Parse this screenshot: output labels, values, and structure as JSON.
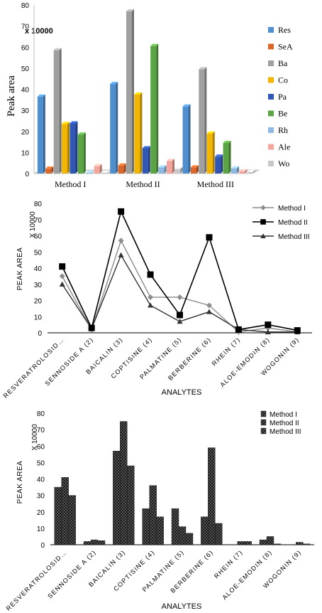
{
  "chart_data": [
    {
      "type": "bar",
      "ylabel": "Peak area",
      "scale_label": "x 10000",
      "ylim": [
        0,
        80
      ],
      "yticks": [
        0,
        10,
        20,
        30,
        40,
        50,
        60,
        70,
        80
      ],
      "categories": [
        "Method I",
        "Method II",
        "Method III"
      ],
      "legend_position": "right",
      "series": [
        {
          "name": "Res",
          "color": "#4f8fcf",
          "values": [
            36.5,
            42.5,
            31.8
          ]
        },
        {
          "name": "SeA",
          "color": "#d9662a",
          "values": [
            2.3,
            3.8,
            2.9
          ]
        },
        {
          "name": "Ba",
          "color": "#a0a0a0",
          "values": [
            58.5,
            77.0,
            49.5
          ]
        },
        {
          "name": "Co",
          "color": "#f2b600",
          "values": [
            23.5,
            37.5,
            19.0
          ]
        },
        {
          "name": "Pa",
          "color": "#2f57b3",
          "values": [
            23.8,
            12.0,
            8.0
          ]
        },
        {
          "name": "Be",
          "color": "#5aa445",
          "values": [
            18.5,
            60.5,
            14.5
          ]
        },
        {
          "name": "Rh",
          "color": "#8fb8e2",
          "values": [
            0.3,
            3.0,
            2.5
          ]
        },
        {
          "name": "Ale",
          "color": "#f4a69c",
          "values": [
            3.5,
            6.0,
            1.0
          ]
        },
        {
          "name": "Wo",
          "color": "#c8c8c8",
          "values": [
            0.4,
            2.2,
            0.7
          ]
        }
      ]
    },
    {
      "type": "line",
      "ylabel": "PEAK AREA",
      "xlabel": "ANALYTES",
      "scale_label": "X 10000",
      "ylim": [
        0,
        80
      ],
      "yticks": [
        0,
        10,
        20,
        30,
        40,
        50,
        60,
        70,
        80
      ],
      "legend_position": "top-right",
      "categories": [
        "RESVERATROLOSID…",
        "SENNOSIDE A (2)",
        "BAICALIN (3)",
        "COPTISINE (4)",
        "PALMATINE (5)",
        "BERBERINE (6)",
        "RHEIN (7)",
        "ALOE-EMODIN (8)",
        "WOGONIN (9)"
      ],
      "series": [
        {
          "name": "Method I",
          "color": "#8c8c8c",
          "marker": "diamond",
          "values": [
            35,
            2,
            57,
            22,
            22,
            17,
            0.5,
            3,
            0.5
          ]
        },
        {
          "name": "Method II",
          "color": "#000000",
          "marker": "square",
          "values": [
            41,
            3,
            75,
            36,
            11,
            59,
            2,
            5,
            1.5
          ]
        },
        {
          "name": "Method III",
          "color": "#333333",
          "marker": "triangle",
          "values": [
            30,
            2.5,
            48,
            17,
            7,
            13,
            2,
            0.5,
            0.5
          ]
        }
      ]
    },
    {
      "type": "bar",
      "ylabel": "PEAK AREA",
      "xlabel": "ANALYTES",
      "scale_label": "X 10000",
      "ylim": [
        0,
        80
      ],
      "yticks": [
        0,
        10,
        20,
        30,
        40,
        50,
        60,
        70,
        80
      ],
      "legend_position": "top-right",
      "categories": [
        "RESVERATROLOSID…",
        "SENNOSIDE A (2)",
        "BAICALIN (3)",
        "COPTISINE (4)",
        "PALMATINE (5)",
        "BERBERINE (6)",
        "RHEIN (7)",
        "ALOE-EMODIN (8)",
        "WOGONIN (9)"
      ],
      "series": [
        {
          "name": "Method I",
          "values": [
            35,
            2,
            57,
            22,
            22,
            17,
            0,
            3,
            0
          ]
        },
        {
          "name": "Method II",
          "values": [
            41,
            3,
            75,
            36,
            11,
            59,
            2,
            5,
            1.5
          ]
        },
        {
          "name": "Method III",
          "values": [
            30,
            2.5,
            48,
            17,
            7,
            13,
            2,
            0.5,
            0.5
          ]
        }
      ]
    }
  ]
}
